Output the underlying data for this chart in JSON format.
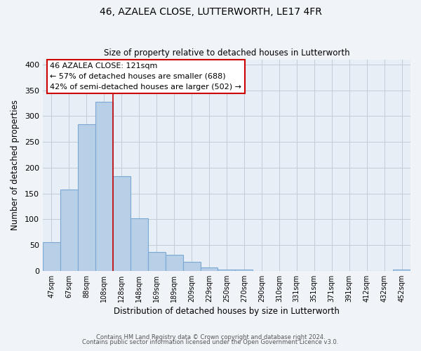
{
  "title": "46, AZALEA CLOSE, LUTTERWORTH, LE17 4FR",
  "subtitle": "Size of property relative to detached houses in Lutterworth",
  "xlabel": "Distribution of detached houses by size in Lutterworth",
  "ylabel": "Number of detached properties",
  "bar_labels": [
    "47sqm",
    "67sqm",
    "88sqm",
    "108sqm",
    "128sqm",
    "148sqm",
    "169sqm",
    "189sqm",
    "209sqm",
    "229sqm",
    "250sqm",
    "270sqm",
    "290sqm",
    "310sqm",
    "331sqm",
    "351sqm",
    "371sqm",
    "391sqm",
    "412sqm",
    "432sqm",
    "452sqm"
  ],
  "bar_heights": [
    55,
    158,
    284,
    328,
    184,
    102,
    37,
    31,
    18,
    6,
    3,
    2,
    0,
    0,
    0,
    0,
    0,
    0,
    0,
    0,
    2
  ],
  "bar_color": "#b8cfe8",
  "bar_edge_color": "#7aa8d4",
  "marker_bar_index": 3.5,
  "marker_color": "#cc0000",
  "ylim": [
    0,
    410
  ],
  "yticks": [
    0,
    50,
    100,
    150,
    200,
    250,
    300,
    350,
    400
  ],
  "annotation_title": "46 AZALEA CLOSE: 121sqm",
  "annotation_line1": "← 57% of detached houses are smaller (688)",
  "annotation_line2": "42% of semi-detached houses are larger (502) →",
  "footer_line1": "Contains HM Land Registry data © Crown copyright and database right 2024.",
  "footer_line2": "Contains public sector information licensed under the Open Government Licence v3.0.",
  "bg_color": "#f0f4f8",
  "plot_bg_color": "#e8eef5",
  "grid_color": "#c0ccd8"
}
